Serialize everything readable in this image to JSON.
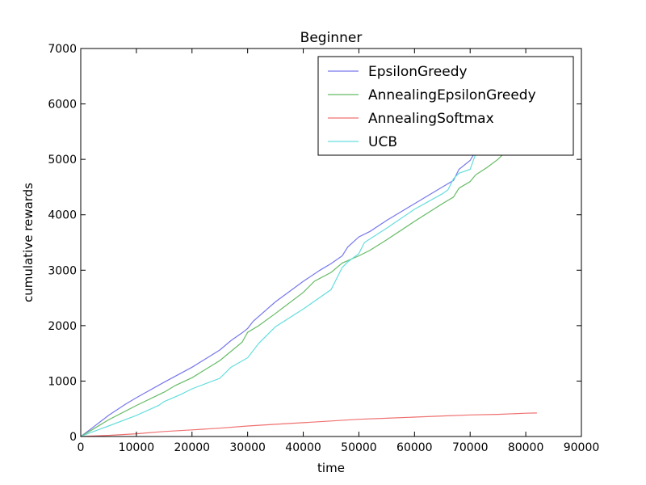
{
  "chart_data": {
    "type": "line",
    "title": "Beginner",
    "xlabel": "time",
    "ylabel": "cumulative rewards",
    "xlim": [
      0,
      90000
    ],
    "ylim": [
      0,
      7000
    ],
    "xticks": [
      0,
      10000,
      20000,
      30000,
      40000,
      50000,
      60000,
      70000,
      80000,
      90000
    ],
    "yticks": [
      0,
      1000,
      2000,
      3000,
      4000,
      5000,
      6000,
      7000
    ],
    "grid": false,
    "legend_position": "top-right",
    "series": [
      {
        "name": "EpsilonGreedy",
        "color": "#7777ee",
        "x": [
          0,
          2000,
          5000,
          8000,
          10000,
          15000,
          20000,
          25000,
          27000,
          29000,
          30000,
          31000,
          35000,
          40000,
          43000,
          45000,
          47000,
          48000,
          50000,
          52000,
          55000,
          60000,
          65000,
          67000,
          68000,
          70000,
          71000
        ],
        "y": [
          0,
          150,
          380,
          580,
          700,
          980,
          1250,
          1560,
          1730,
          1870,
          1950,
          2080,
          2430,
          2800,
          3000,
          3120,
          3260,
          3420,
          3600,
          3700,
          3900,
          4200,
          4500,
          4620,
          4820,
          4980,
          5150
        ]
      },
      {
        "name": "AnnealingEpsilonGreedy",
        "color": "#66bb66",
        "x": [
          0,
          2000,
          5000,
          10000,
          15000,
          17000,
          20000,
          25000,
          29000,
          30000,
          32000,
          35000,
          40000,
          42000,
          45000,
          47000,
          50000,
          52000,
          55000,
          60000,
          65000,
          67000,
          68000,
          70000,
          71000,
          73000,
          75000,
          76000
        ],
        "y": [
          0,
          120,
          300,
          560,
          800,
          920,
          1060,
          1370,
          1700,
          1880,
          2000,
          2220,
          2600,
          2800,
          2960,
          3130,
          3260,
          3360,
          3550,
          3880,
          4200,
          4320,
          4480,
          4600,
          4720,
          4850,
          5000,
          5100
        ]
      },
      {
        "name": "AnnealingSoftmax",
        "color": "#f07070",
        "x": [
          0,
          5000,
          10000,
          15000,
          20000,
          25000,
          30000,
          35000,
          40000,
          45000,
          50000,
          55000,
          60000,
          65000,
          70000,
          75000,
          80000,
          82000
        ],
        "y": [
          0,
          20,
          50,
          90,
          120,
          150,
          190,
          220,
          250,
          280,
          310,
          330,
          350,
          370,
          390,
          400,
          420,
          425
        ]
      },
      {
        "name": "UCB",
        "color": "#66dddd",
        "x": [
          0,
          2000,
          5000,
          10000,
          14000,
          15000,
          18000,
          20000,
          25000,
          27000,
          30000,
          32000,
          35000,
          40000,
          45000,
          46000,
          47000,
          48000,
          50000,
          51000,
          55000,
          60000,
          65000,
          66000,
          67000,
          68000,
          70000,
          71000
        ],
        "y": [
          0,
          80,
          190,
          380,
          560,
          630,
          760,
          860,
          1050,
          1250,
          1420,
          1680,
          1980,
          2300,
          2650,
          2850,
          3050,
          3150,
          3300,
          3500,
          3760,
          4100,
          4380,
          4450,
          4650,
          4750,
          4820,
          5100
        ]
      }
    ]
  }
}
